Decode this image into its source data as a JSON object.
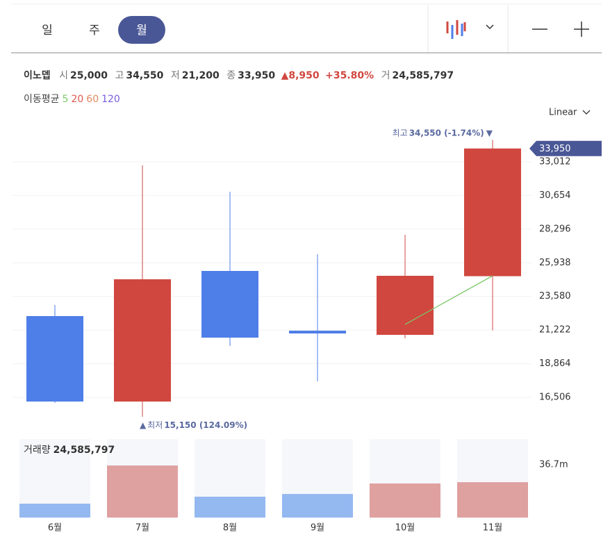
{
  "tabs": [
    "일",
    "주",
    "월"
  ],
  "selected_tab": 2,
  "header": {
    "name": "이노뎁",
    "open_label": "시",
    "open": "25,000",
    "high_label": "고",
    "high": "34,550",
    "low_label": "저",
    "low": "21,200",
    "close_label": "종",
    "close": "33,950",
    "change": "8,950",
    "change_pct": "+35.80%",
    "volume_label": "거",
    "volume": "24,585,797"
  },
  "ma_label": "이동평균",
  "scale_mode": "Linear",
  "chart_data": {
    "type": "candlestick",
    "categories": [
      "6월",
      "7월",
      "8월",
      "9월",
      "10월",
      "11월"
    ],
    "open": [
      22203,
      16214,
      25368,
      21180,
      20888,
      25000
    ],
    "high": [
      22982,
      32768,
      30918,
      26536,
      27900,
      34550
    ],
    "low": [
      16116,
      15150,
      20109,
      17626,
      20645,
      21200
    ],
    "close": [
      16214,
      24783,
      20693,
      20985,
      25027,
      33950
    ],
    "up_color": "#d0473f",
    "down_color": "#4e7ee8",
    "ylim": [
      14169,
      35593
    ],
    "yticks": [
      {
        "value": 16506,
        "label": "16,506"
      },
      {
        "value": 18864,
        "label": "18,864"
      },
      {
        "value": 21222,
        "label": "21,222"
      },
      {
        "value": 23580,
        "label": "23,580"
      },
      {
        "value": 25938,
        "label": "25,938"
      },
      {
        "value": 28296,
        "label": "28,296"
      },
      {
        "value": 30654,
        "label": "30,654"
      },
      {
        "value": 33012,
        "label": "33,012"
      }
    ],
    "moving_averages": [
      {
        "name": "5",
        "color": "#7cc86a",
        "values": [
          null,
          null,
          null,
          null,
          21618,
          25027
        ]
      },
      {
        "name": "20",
        "color": "#e0584f",
        "values": [
          null,
          null,
          null,
          null,
          null,
          null
        ]
      },
      {
        "name": "60",
        "color": "#e0885f",
        "values": [
          null,
          null,
          null,
          null,
          null,
          null
        ]
      },
      {
        "name": "120",
        "color": "#7a5ce0",
        "values": [
          null,
          null,
          null,
          null,
          null,
          null
        ]
      }
    ],
    "high_annotation": {
      "prefix": "최고",
      "text": "34,550 (-1.74%)"
    },
    "low_annotation": {
      "prefix": "최저",
      "text": "15,150 (124.09%)"
    },
    "volume": {
      "label": "거래량",
      "value_label": "24,585,797",
      "values": [
        9660000,
        36200000,
        14500000,
        16400000,
        23700000,
        24585797
      ],
      "up_color": "#dfa0a0",
      "down_color": "#94b8f0",
      "ylim": [
        0,
        54600000
      ],
      "yticks": [
        {
          "value": 36700000,
          "label": "36.7m"
        }
      ]
    }
  }
}
